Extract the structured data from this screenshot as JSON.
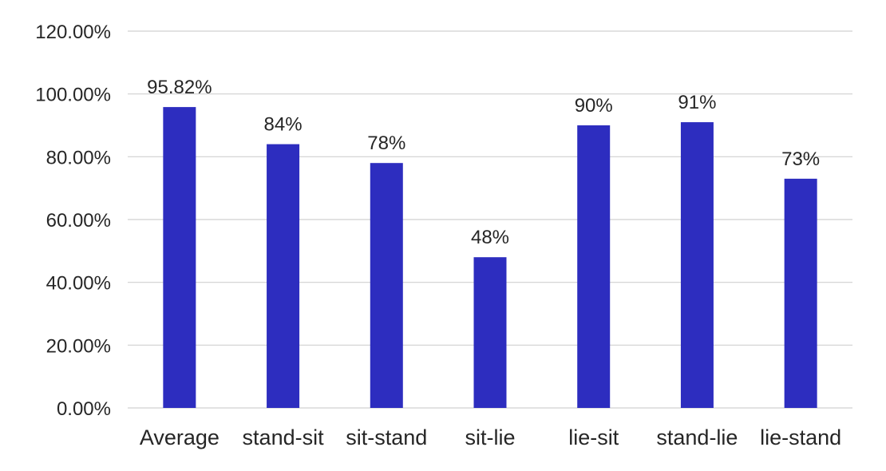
{
  "chart_data": {
    "type": "bar",
    "title": "",
    "xlabel": "",
    "ylabel": "",
    "categories": [
      "Average",
      "stand-sit",
      "sit-stand",
      "sit-lie",
      "lie-sit",
      "stand-lie",
      "lie-stand"
    ],
    "values": [
      95.82,
      84,
      78,
      48,
      90,
      91,
      73
    ],
    "data_labels": [
      "95.82%",
      "84%",
      "78%",
      "48%",
      "90%",
      "91%",
      "73%"
    ],
    "ylim": [
      0,
      120
    ],
    "yticks": [
      0,
      20,
      40,
      60,
      80,
      100,
      120
    ],
    "ytick_labels": [
      "0.00%",
      "20.00%",
      "40.00%",
      "60.00%",
      "80.00%",
      "100.00%",
      "120.00%"
    ],
    "bar_color": "#2d2dbf",
    "grid": true,
    "legend": "none"
  }
}
